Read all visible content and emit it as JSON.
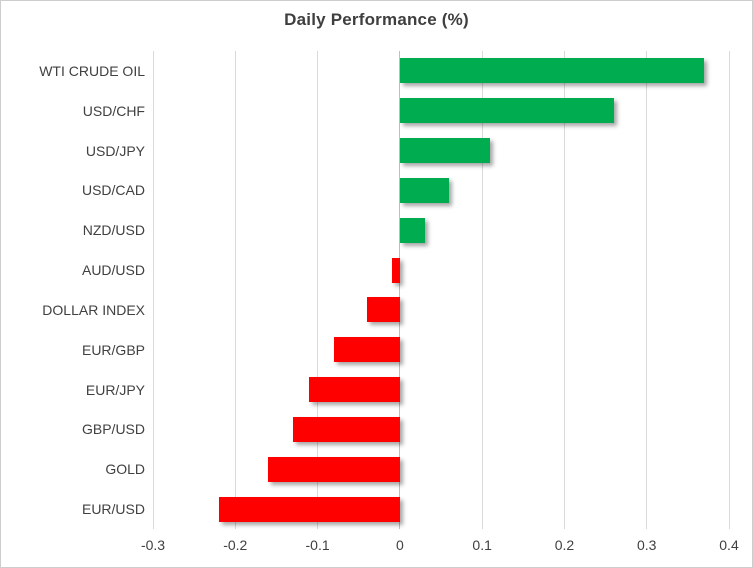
{
  "chart_data": {
    "type": "bar",
    "orientation": "horizontal",
    "title": "Daily Performance (%)",
    "categories": [
      "WTI CRUDE OIL",
      "USD/CHF",
      "USD/JPY",
      "USD/CAD",
      "NZD/USD",
      "AUD/USD",
      "DOLLAR INDEX",
      "EUR/GBP",
      "EUR/JPY",
      "GBP/USD",
      "GOLD",
      "EUR/USD"
    ],
    "values": [
      0.37,
      0.26,
      0.11,
      0.06,
      0.03,
      -0.01,
      -0.04,
      -0.08,
      -0.11,
      -0.13,
      -0.16,
      -0.22
    ],
    "xlim": [
      -0.3,
      0.4
    ],
    "xticks": [
      -0.3,
      -0.2,
      -0.1,
      0,
      0.1,
      0.2,
      0.3,
      0.4
    ],
    "xtick_labels": [
      "-0.3",
      "-0.2",
      "-0.1",
      "0",
      "0.1",
      "0.2",
      "0.3",
      "0.4"
    ],
    "grid": true,
    "legend": "none",
    "positive_color": "#00AC50",
    "negative_color": "#FF0000",
    "gridline_color": "#D9D9D9",
    "text_color": "#404040",
    "title_color": "#3F3F3F"
  }
}
